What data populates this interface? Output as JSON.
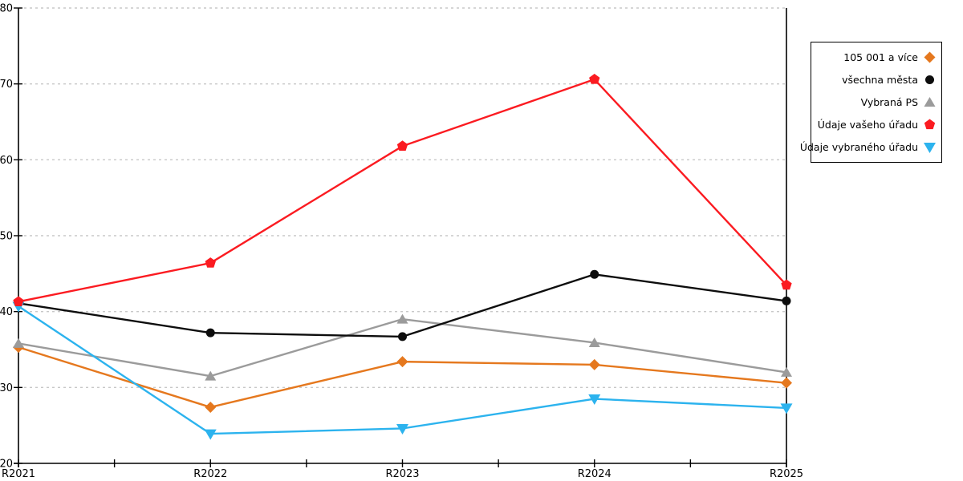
{
  "chart_data": {
    "type": "line",
    "title": "",
    "xlabel": "",
    "ylabel": "",
    "x_categories": [
      "R2021",
      "R2022",
      "R2023",
      "R2024",
      "R2025"
    ],
    "ylim": [
      20,
      80
    ],
    "yticks": [
      20,
      30,
      40,
      50,
      60,
      70,
      80
    ],
    "grid": "horizontal-dotted",
    "legend_position": "right-outside",
    "series": [
      {
        "name": "105 001 a více",
        "marker": "diamond",
        "color": "#E5781E",
        "values": [
          35.3,
          27.4,
          33.4,
          33.0,
          30.6
        ]
      },
      {
        "name": "všechna města",
        "marker": "circle",
        "color": "#0D0D0D",
        "values": [
          41.1,
          37.2,
          36.7,
          44.9,
          41.4
        ]
      },
      {
        "name": "Vybraná PS",
        "marker": "triangle-up",
        "color": "#9B9B9B",
        "values": [
          35.8,
          31.5,
          39.0,
          35.9,
          32.0
        ]
      },
      {
        "name": "Údaje vašeho úřadu",
        "marker": "pentagon",
        "color": "#FB1B21",
        "values": [
          41.3,
          46.4,
          61.8,
          70.6,
          43.5
        ]
      },
      {
        "name": "Údaje vybraného úřadu",
        "marker": "triangle-down",
        "color": "#2CB3EE",
        "values": [
          40.7,
          23.9,
          24.6,
          28.5,
          27.3
        ]
      }
    ],
    "z_order": [
      0,
      2,
      1,
      4,
      3
    ],
    "colors": {
      "grid": "#C8C8C8",
      "axis": "#000000",
      "background": "#FFFFFF",
      "text": "#000000"
    }
  }
}
